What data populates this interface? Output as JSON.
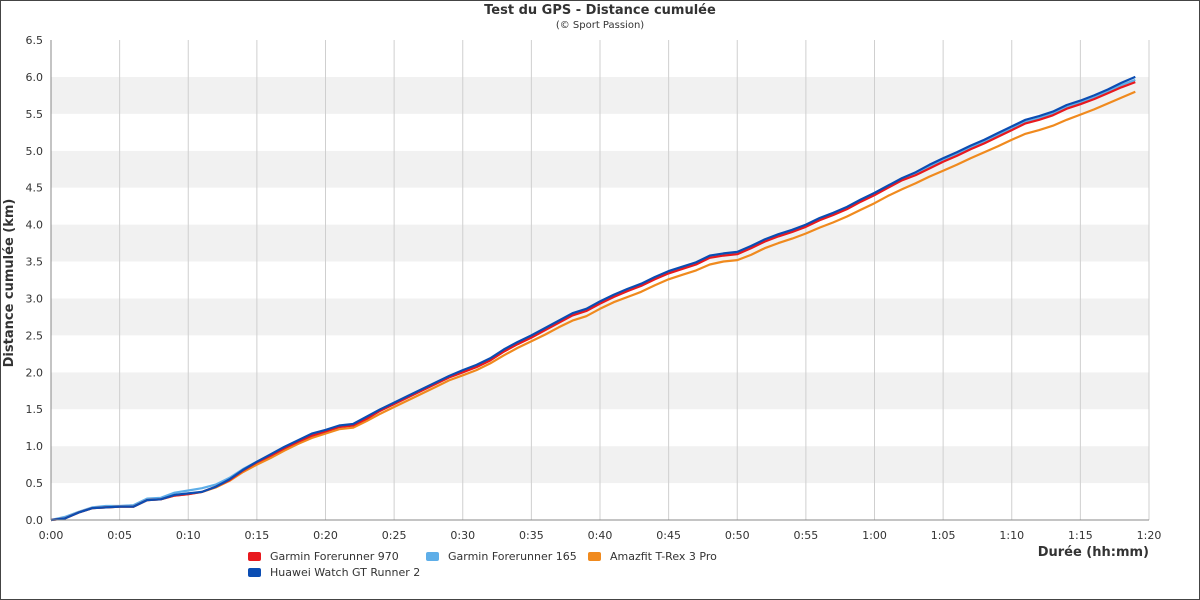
{
  "chart_data": {
    "type": "line",
    "title": "Test du GPS - Distance cumulée",
    "subtitle": "(© Sport Passion)",
    "xlabel": "Durée (hh:mm)",
    "ylabel": "Distance cumulée (km)",
    "x_unit": "minutes",
    "xlim": [
      0,
      80
    ],
    "ylim": [
      0,
      6.5
    ],
    "x_ticks": [
      "0:00",
      "0:05",
      "0:10",
      "0:15",
      "0:20",
      "0:25",
      "0:30",
      "0:35",
      "0:40",
      "0:45",
      "0:50",
      "0:55",
      "1:00",
      "1:05",
      "1:10",
      "1:15",
      "1:20"
    ],
    "y_ticks": [
      "0.0",
      "0.5",
      "1.0",
      "1.5",
      "2.0",
      "2.5",
      "3.0",
      "3.5",
      "4.0",
      "4.5",
      "5.0",
      "5.5",
      "6.0",
      "6.5"
    ],
    "grid": true,
    "legend_position": "bottom-left",
    "x": [
      0,
      1,
      2,
      3,
      4,
      5,
      6,
      7,
      8,
      9,
      10,
      11,
      12,
      13,
      14,
      15,
      16,
      17,
      18,
      19,
      20,
      21,
      22,
      23,
      24,
      25,
      26,
      27,
      28,
      29,
      30,
      31,
      32,
      33,
      34,
      35,
      36,
      37,
      38,
      39,
      40,
      41,
      42,
      43,
      44,
      45,
      46,
      47,
      48,
      49,
      50,
      51,
      52,
      53,
      54,
      55,
      56,
      57,
      58,
      59,
      60,
      61,
      62,
      63,
      64,
      65,
      66,
      67,
      68,
      69,
      70,
      71,
      72,
      73,
      74,
      75,
      76,
      77,
      78,
      79
    ],
    "series": [
      {
        "name": "Garmin Forerunner 970",
        "color": "#e8191e",
        "values": [
          0.0,
          0.02,
          0.1,
          0.16,
          0.17,
          0.18,
          0.18,
          0.27,
          0.28,
          0.33,
          0.35,
          0.38,
          0.45,
          0.54,
          0.67,
          0.78,
          0.87,
          0.97,
          1.06,
          1.14,
          1.2,
          1.26,
          1.28,
          1.37,
          1.48,
          1.57,
          1.66,
          1.75,
          1.84,
          1.93,
          2.0,
          2.07,
          2.16,
          2.28,
          2.38,
          2.47,
          2.57,
          2.67,
          2.77,
          2.83,
          2.93,
          3.02,
          3.1,
          3.17,
          3.26,
          3.34,
          3.4,
          3.46,
          3.55,
          3.58,
          3.6,
          3.68,
          3.77,
          3.84,
          3.9,
          3.97,
          4.06,
          4.13,
          4.21,
          4.31,
          4.4,
          4.5,
          4.6,
          4.67,
          4.76,
          4.85,
          4.93,
          5.02,
          5.1,
          5.19,
          5.28,
          5.37,
          5.42,
          5.48,
          5.57,
          5.63,
          5.7,
          5.78,
          5.86,
          5.93
        ]
      },
      {
        "name": "Huawei Watch GT Runner 2",
        "color": "#0b4db3",
        "values": [
          0.0,
          0.02,
          0.1,
          0.16,
          0.17,
          0.18,
          0.18,
          0.27,
          0.28,
          0.34,
          0.36,
          0.38,
          0.45,
          0.55,
          0.68,
          0.79,
          0.89,
          0.99,
          1.08,
          1.17,
          1.22,
          1.28,
          1.3,
          1.4,
          1.5,
          1.59,
          1.68,
          1.77,
          1.86,
          1.95,
          2.03,
          2.1,
          2.19,
          2.31,
          2.41,
          2.5,
          2.6,
          2.7,
          2.8,
          2.86,
          2.96,
          3.05,
          3.13,
          3.2,
          3.29,
          3.37,
          3.43,
          3.49,
          3.58,
          3.61,
          3.63,
          3.71,
          3.8,
          3.87,
          3.93,
          4.0,
          4.09,
          4.16,
          4.24,
          4.34,
          4.43,
          4.53,
          4.63,
          4.71,
          4.81,
          4.9,
          4.98,
          5.07,
          5.15,
          5.24,
          5.33,
          5.42,
          5.47,
          5.53,
          5.62,
          5.68,
          5.75,
          5.83,
          5.92,
          6.0
        ]
      },
      {
        "name": "Garmin Forerunner 165",
        "color": "#5eaee8",
        "values": [
          0.0,
          0.04,
          0.11,
          0.17,
          0.19,
          0.19,
          0.2,
          0.29,
          0.3,
          0.37,
          0.4,
          0.43,
          0.48,
          0.57,
          0.69,
          0.79,
          0.88,
          0.98,
          1.07,
          1.15,
          1.21,
          1.27,
          1.29,
          1.38,
          1.49,
          1.58,
          1.67,
          1.76,
          1.85,
          1.94,
          2.01,
          2.08,
          2.17,
          2.29,
          2.39,
          2.48,
          2.58,
          2.68,
          2.78,
          2.84,
          2.94,
          3.03,
          3.11,
          3.18,
          3.27,
          3.35,
          3.41,
          3.47,
          3.56,
          3.59,
          3.61,
          3.69,
          3.78,
          3.85,
          3.91,
          3.98,
          4.07,
          4.14,
          4.22,
          4.32,
          4.41,
          4.51,
          4.61,
          4.69,
          4.78,
          4.87,
          4.95,
          5.04,
          5.12,
          5.21,
          5.3,
          5.39,
          5.44,
          5.5,
          5.59,
          5.65,
          5.72,
          5.8,
          5.89,
          5.96
        ]
      },
      {
        "name": "Amazfit T-Rex 3 Pro",
        "color": "#f08a1e",
        "values": [
          0.0,
          0.02,
          0.1,
          0.16,
          0.17,
          0.18,
          0.18,
          0.27,
          0.28,
          0.33,
          0.35,
          0.38,
          0.44,
          0.53,
          0.65,
          0.75,
          0.84,
          0.94,
          1.03,
          1.11,
          1.17,
          1.23,
          1.25,
          1.34,
          1.44,
          1.53,
          1.62,
          1.71,
          1.8,
          1.89,
          1.96,
          2.03,
          2.12,
          2.23,
          2.33,
          2.42,
          2.51,
          2.61,
          2.7,
          2.76,
          2.86,
          2.95,
          3.02,
          3.09,
          3.18,
          3.26,
          3.32,
          3.38,
          3.46,
          3.5,
          3.52,
          3.59,
          3.68,
          3.75,
          3.81,
          3.88,
          3.96,
          4.03,
          4.11,
          4.2,
          4.29,
          4.39,
          4.48,
          4.56,
          4.65,
          4.73,
          4.81,
          4.9,
          4.98,
          5.06,
          5.15,
          5.23,
          5.28,
          5.34,
          5.42,
          5.49,
          5.56,
          5.64,
          5.72,
          5.8
        ]
      }
    ]
  },
  "legend": [
    {
      "label": "Garmin Forerunner 970",
      "color": "#e8191e"
    },
    {
      "label": "Garmin Forerunner 165",
      "color": "#5eaee8"
    },
    {
      "label": "Amazfit T-Rex 3 Pro",
      "color": "#f08a1e"
    },
    {
      "label": "Huawei Watch GT Runner 2",
      "color": "#0b4db3"
    }
  ]
}
